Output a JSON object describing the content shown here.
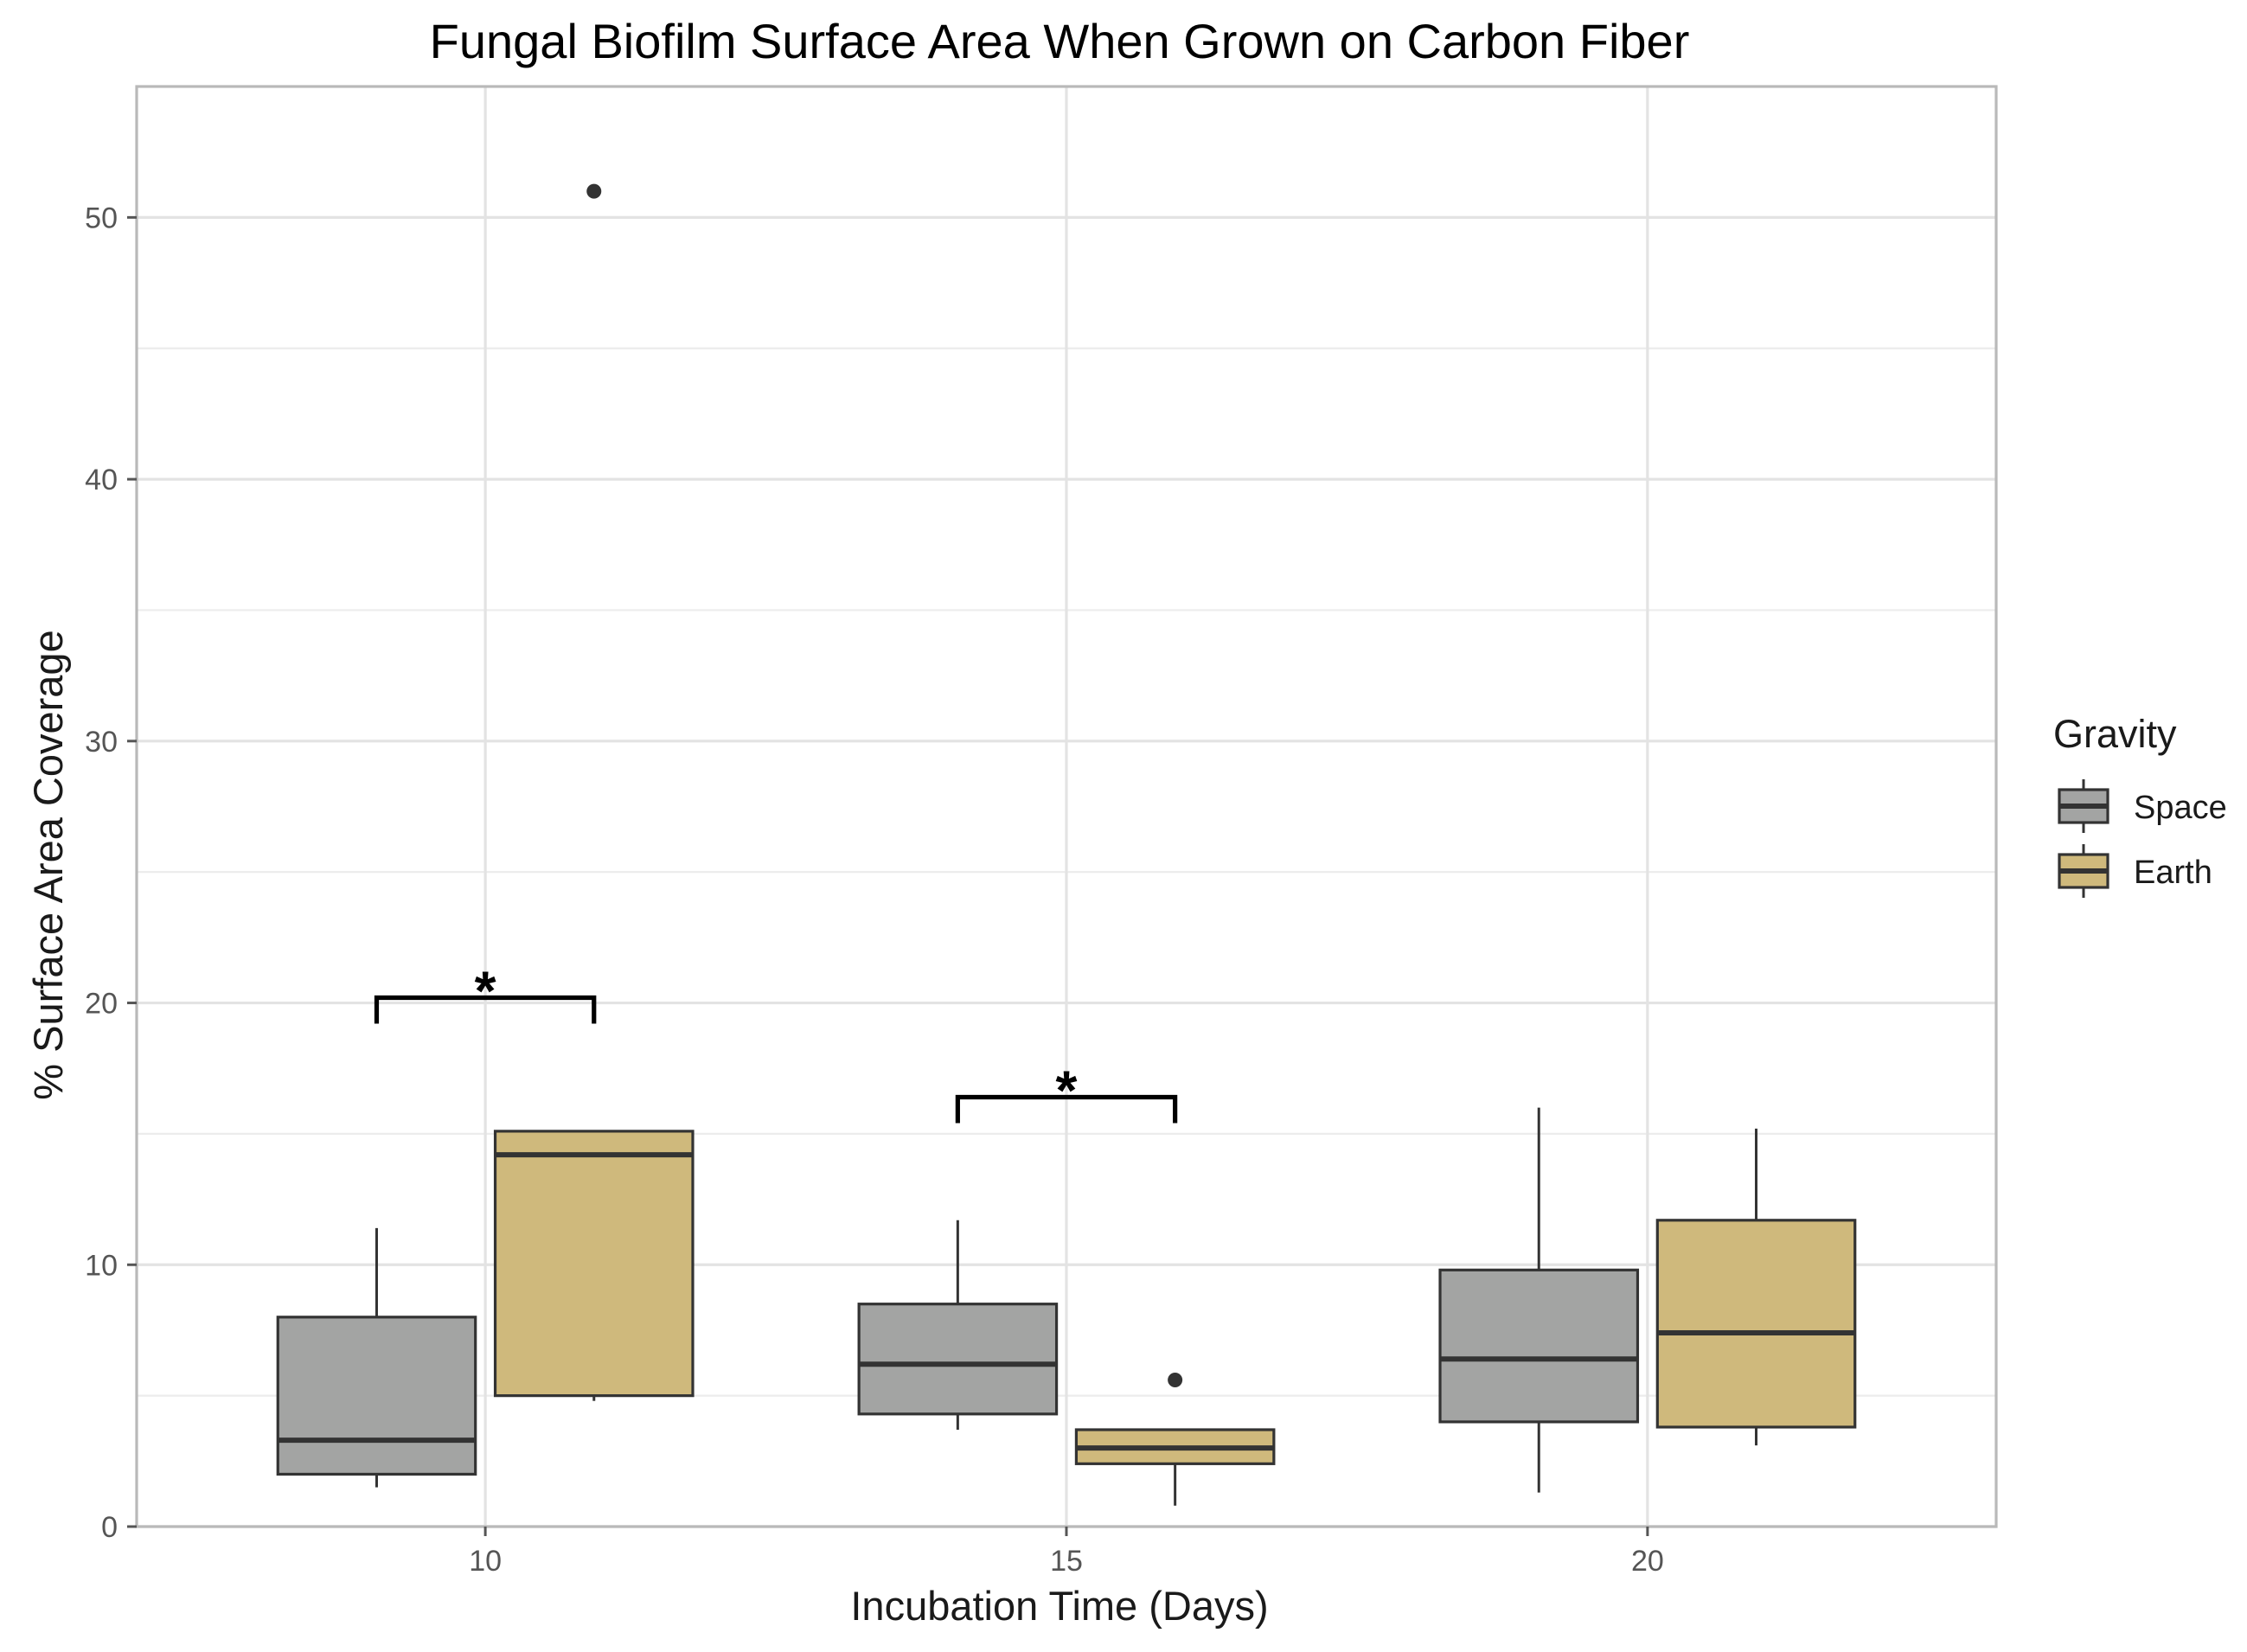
{
  "chart_data": {
    "type": "boxplot",
    "title": "Fungal Biofilm Surface Area When Grown on Carbon Fiber",
    "xlabel": "Incubation Time (Days)",
    "ylabel": "% Surface Area Coverage",
    "xlim": [
      7,
      23
    ],
    "ylim": [
      0,
      55
    ],
    "x_ticks": [
      10,
      15,
      20
    ],
    "y_ticks": [
      0,
      10,
      20,
      30,
      40,
      50
    ],
    "y_minor_ticks": [
      5,
      15,
      25,
      35,
      45
    ],
    "legend": {
      "title": "Gravity",
      "placement": "right",
      "entries": [
        {
          "label": "Space",
          "color": "#a3a4a3"
        },
        {
          "label": "Earth",
          "color": "#cfb97c"
        }
      ]
    },
    "series": [
      {
        "name": "Space",
        "color": "#a3a4a3",
        "boxes": [
          {
            "x": 10,
            "low": 1.5,
            "q1": 2.0,
            "median": 3.3,
            "q3": 8.0,
            "high": 11.4,
            "outliers": []
          },
          {
            "x": 15,
            "low": 3.7,
            "q1": 4.3,
            "median": 6.2,
            "q3": 8.5,
            "high": 11.7,
            "outliers": []
          },
          {
            "x": 20,
            "low": 1.3,
            "q1": 4.0,
            "median": 6.4,
            "q3": 9.8,
            "high": 16.0,
            "outliers": []
          }
        ]
      },
      {
        "name": "Earth",
        "color": "#cfb97c",
        "boxes": [
          {
            "x": 10,
            "low": 4.8,
            "q1": 5.0,
            "median": 14.2,
            "q3": 15.1,
            "high": 15.1,
            "outliers": [
              51.0
            ]
          },
          {
            "x": 15,
            "low": 0.8,
            "q1": 2.4,
            "median": 3.0,
            "q3": 3.7,
            "high": 3.7,
            "outliers": [
              5.6
            ]
          },
          {
            "x": 20,
            "low": 3.1,
            "q1": 3.8,
            "median": 7.4,
            "q3": 11.7,
            "high": 15.2,
            "outliers": []
          }
        ]
      }
    ],
    "annotations": [
      {
        "text": "*",
        "x": 10,
        "y": 20.2
      },
      {
        "text": "*",
        "x": 15,
        "y": 16.4
      }
    ]
  }
}
